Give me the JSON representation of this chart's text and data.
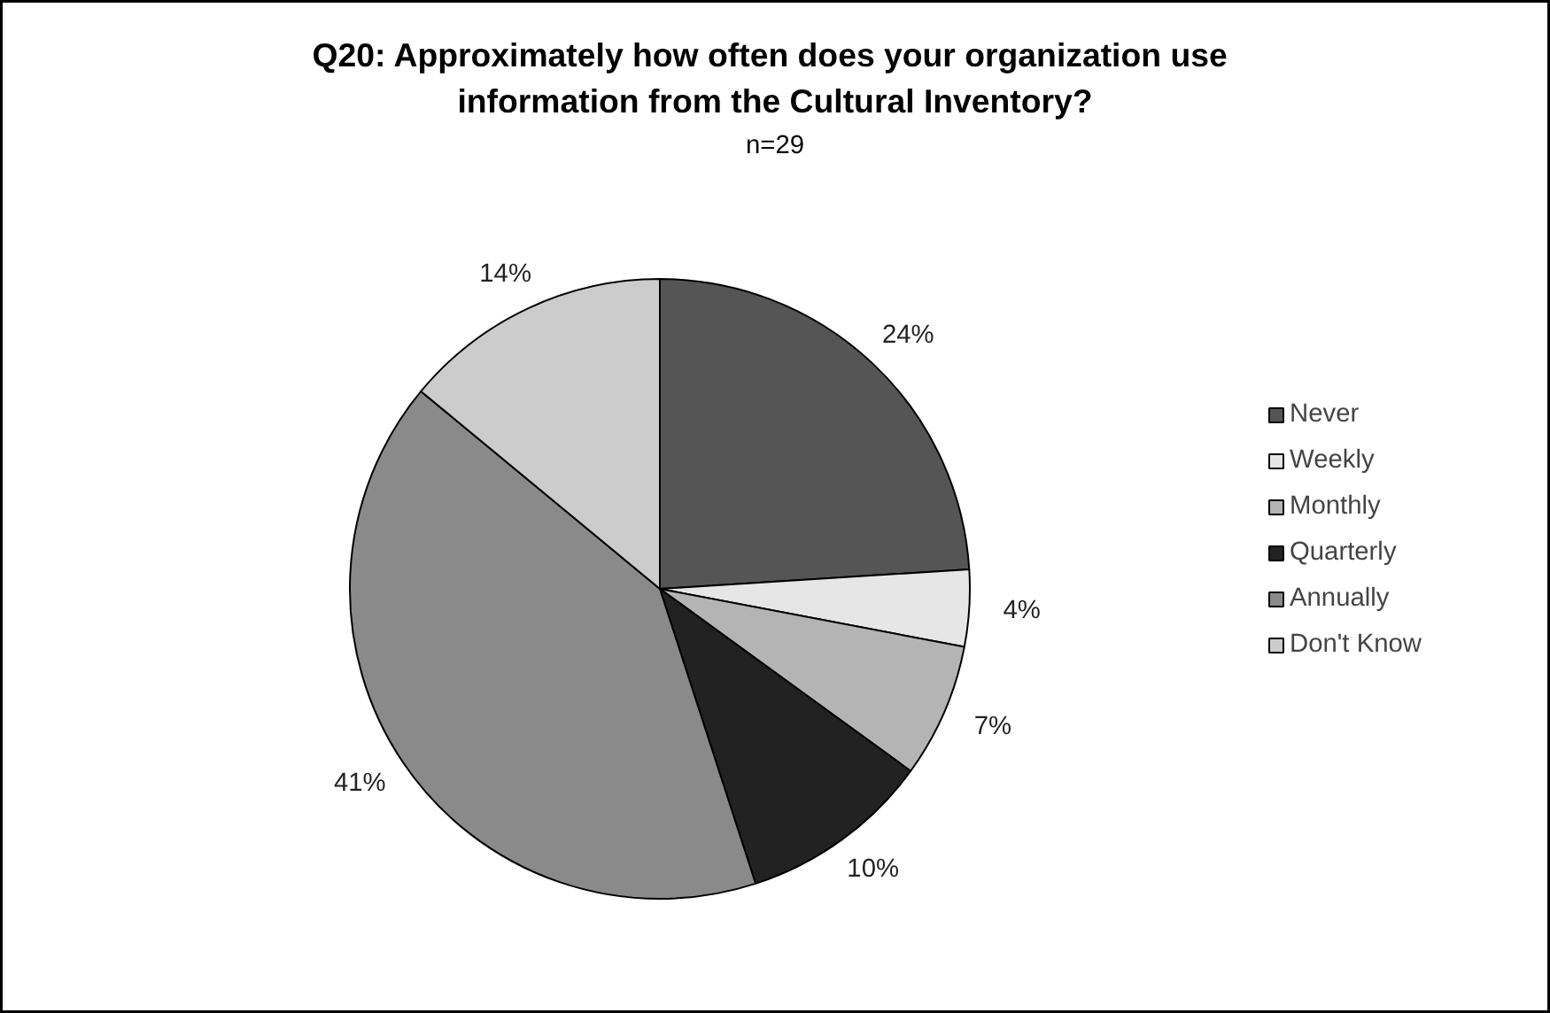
{
  "chart_data": {
    "type": "pie",
    "title": "Q20:  Approximately how often does your organization use information from the Cultural Inventory?",
    "subtitle": "n=29",
    "categories": [
      "Never",
      "Weekly",
      "Monthly",
      "Quarterly",
      "Annually",
      "Don't Know"
    ],
    "values": [
      24,
      4,
      7,
      10,
      41,
      14
    ],
    "value_labels": [
      "24%",
      "4%",
      "7%",
      "10%",
      "41%",
      "14%"
    ],
    "colors": [
      "#555555",
      "#e6e6e6",
      "#b4b4b4",
      "#222222",
      "#8a8a8a",
      "#cccccc"
    ],
    "legend": "right"
  }
}
